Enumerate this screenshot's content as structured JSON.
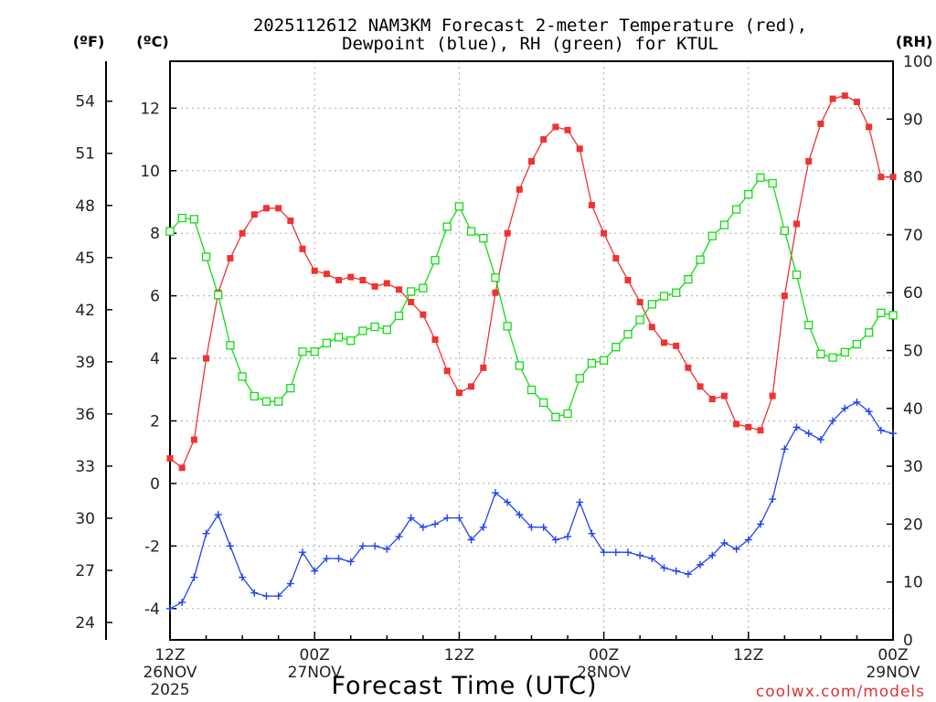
{
  "chart_data": {
    "type": "line",
    "title_line1": "2025112612 NAM3KM Forecast 2-meter Temperature (red),",
    "title_line2": "Dewpoint (blue), RH (green) for KTUL",
    "xlabel": "Forecast Time (UTC)",
    "credit": "coolwx.com/models",
    "unit_f": "(ºF)",
    "unit_c": "(ºC)",
    "unit_rh": "(RH)",
    "x_hours_range": [
      0,
      60
    ],
    "celsius_range": [
      -5,
      13.5
    ],
    "rh_range": [
      0,
      100
    ],
    "fahrenheit_ticks": [
      "24",
      "27",
      "30",
      "33",
      "36",
      "39",
      "42",
      "45",
      "48",
      "51",
      "54"
    ],
    "celsius_ticks": [
      "-4",
      "-2",
      "0",
      "2",
      "4",
      "6",
      "8",
      "10",
      "12"
    ],
    "rh_ticks": [
      "0",
      "10",
      "20",
      "30",
      "40",
      "50",
      "60",
      "70",
      "80",
      "90",
      "100"
    ],
    "x_ticks": [
      {
        "hour": 0,
        "time": "12Z",
        "date": "26NOV",
        "year": "2025"
      },
      {
        "hour": 12,
        "time": "00Z",
        "date": "27NOV",
        "year": ""
      },
      {
        "hour": 24,
        "time": "12Z",
        "date": "",
        "year": ""
      },
      {
        "hour": 36,
        "time": "00Z",
        "date": "28NOV",
        "year": ""
      },
      {
        "hour": 48,
        "time": "12Z",
        "date": "",
        "year": ""
      },
      {
        "hour": 60,
        "time": "00Z",
        "date": "29NOV",
        "year": ""
      }
    ],
    "series": [
      {
        "name": "2-meter Temperature",
        "units": "C",
        "color": "#ee3333",
        "marker": "filled-square",
        "values": [
          0.8,
          0.5,
          1.4,
          4.0,
          6.1,
          7.2,
          8.0,
          8.6,
          8.8,
          8.8,
          8.4,
          7.5,
          6.8,
          6.7,
          6.5,
          6.6,
          6.5,
          6.3,
          6.4,
          6.2,
          5.8,
          5.4,
          4.6,
          3.6,
          2.9,
          3.1,
          3.7,
          6.1,
          8.0,
          9.4,
          10.3,
          11.0,
          11.4,
          11.3,
          10.7,
          8.9,
          8.0,
          7.2,
          6.5,
          5.8,
          5.0,
          4.5,
          4.4,
          3.7,
          3.1,
          2.7,
          2.8,
          1.9,
          1.8,
          1.7,
          2.8,
          6.0,
          8.3,
          10.3,
          11.5,
          12.3,
          12.4,
          12.2,
          11.4,
          9.8,
          9.8
        ]
      },
      {
        "name": "Dewpoint",
        "units": "C",
        "color": "#2244ee",
        "marker": "plus",
        "values": [
          -4.0,
          -3.8,
          -3.0,
          -1.6,
          -1.0,
          -2.0,
          -3.0,
          -3.5,
          -3.6,
          -3.6,
          -3.2,
          -2.2,
          -2.8,
          -2.4,
          -2.4,
          -2.5,
          -2.0,
          -2.0,
          -2.1,
          -1.7,
          -1.1,
          -1.4,
          -1.3,
          -1.1,
          -1.1,
          -1.8,
          -1.4,
          -0.3,
          -0.6,
          -1.0,
          -1.4,
          -1.4,
          -1.8,
          -1.7,
          -0.6,
          -1.6,
          -2.2,
          -2.2,
          -2.2,
          -2.3,
          -2.4,
          -2.7,
          -2.8,
          -2.9,
          -2.6,
          -2.3,
          -1.9,
          -2.1,
          -1.8,
          -1.3,
          -0.5,
          1.1,
          1.8,
          1.6,
          1.4,
          2.0,
          2.4,
          2.6,
          2.3,
          1.7,
          1.6
        ]
      },
      {
        "name": "Relative Humidity",
        "units": "%",
        "color": "#11dd11",
        "marker": "open-square",
        "values": [
          70.6,
          72.9,
          72.7,
          66.2,
          59.6,
          50.9,
          45.5,
          42.1,
          41.2,
          41.2,
          43.5,
          49.8,
          49.8,
          51.3,
          52.3,
          51.7,
          53.4,
          54.1,
          53.6,
          56.0,
          60.2,
          60.8,
          65.6,
          71.4,
          74.9,
          70.6,
          69.4,
          62.6,
          54.2,
          47.4,
          43.2,
          41.0,
          38.5,
          39.1,
          45.2,
          47.8,
          48.3,
          50.6,
          52.8,
          55.3,
          58.0,
          59.4,
          60.0,
          62.3,
          65.7,
          69.8,
          71.7,
          74.4,
          77.0,
          79.9,
          78.9,
          70.7,
          63.1,
          54.4,
          49.4,
          48.8,
          49.7,
          51.1,
          53.1,
          56.5,
          56.1
        ]
      }
    ]
  }
}
